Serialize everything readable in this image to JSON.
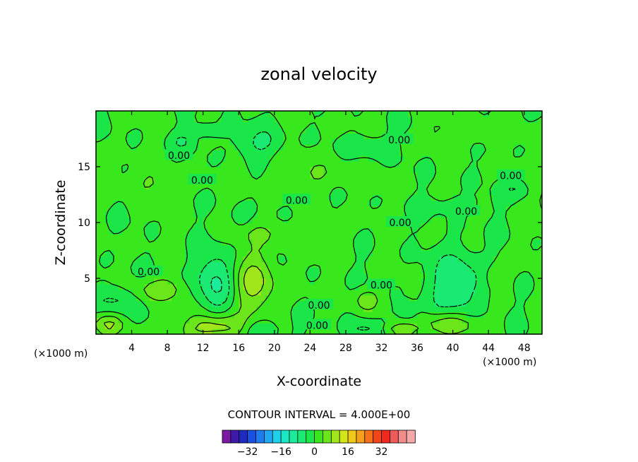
{
  "chart_data": {
    "type": "heatmap",
    "plot_style": "filled contour",
    "title": "zonal velocity",
    "xlabel": "X-coordinate",
    "ylabel": "Z-coordinate",
    "x_unit": "(×1000 m)",
    "xlim": [
      0,
      50
    ],
    "ylim": [
      0,
      20
    ],
    "x_ticks": [
      4,
      8,
      12,
      16,
      20,
      24,
      28,
      32,
      36,
      40,
      44,
      48
    ],
    "y_ticks": [
      5,
      10,
      15
    ],
    "contour_interval_label": "CONTOUR INTERVAL = 4.000E+00",
    "contour_interval": 4.0,
    "contour_labels": [
      {
        "text": "0.00",
        "x": 9.3,
        "y": 16.0
      },
      {
        "text": "0.00",
        "x": 11.9,
        "y": 13.8
      },
      {
        "text": "0.00",
        "x": 22.5,
        "y": 12.0
      },
      {
        "text": "0.00",
        "x": 34.1,
        "y": 10.0
      },
      {
        "text": "0.00",
        "x": 41.5,
        "y": 11.0
      },
      {
        "text": "0.00",
        "x": 46.5,
        "y": 14.2
      },
      {
        "text": "0.00",
        "x": 34.0,
        "y": 17.4
      },
      {
        "text": "0.00",
        "x": 5.9,
        "y": 5.6
      },
      {
        "text": "0.00",
        "x": 32.0,
        "y": 4.4
      },
      {
        "text": "0.00",
        "x": 25.0,
        "y": 2.6
      },
      {
        "text": "0.00",
        "x": 24.8,
        "y": 0.8
      }
    ],
    "field_features": [
      {
        "kind": "negative",
        "x": 13.4,
        "y": 4.8,
        "rx": 2.2,
        "ry": 2.6,
        "peak": -9
      },
      {
        "kind": "negative",
        "x": 40.5,
        "y": 4.6,
        "rx": 2.8,
        "ry": 2.8,
        "peak": -9
      },
      {
        "kind": "negative",
        "x": 2.0,
        "y": 3.1,
        "rx": 2.2,
        "ry": 1.4,
        "peak": -6
      },
      {
        "kind": "negative",
        "x": 18.5,
        "y": 0.4,
        "rx": 2.0,
        "ry": 0.9,
        "peak": -6
      },
      {
        "kind": "negative",
        "x": 30.0,
        "y": 0.5,
        "rx": 1.8,
        "ry": 0.8,
        "peak": -5
      },
      {
        "kind": "negative",
        "x": 35.0,
        "y": 2.0,
        "rx": 1.2,
        "ry": 0.9,
        "peak": -5
      },
      {
        "kind": "positive",
        "x": 17.7,
        "y": 4.6,
        "rx": 2.3,
        "ry": 2.5,
        "peak": 9
      },
      {
        "kind": "positive",
        "x": 13.3,
        "y": 0.6,
        "rx": 3.2,
        "ry": 1.1,
        "peak": 11
      },
      {
        "kind": "positive",
        "x": 6.9,
        "y": 4.0,
        "rx": 2.9,
        "ry": 1.0,
        "peak": 6
      },
      {
        "kind": "positive",
        "x": 1.5,
        "y": 0.9,
        "rx": 1.8,
        "ry": 0.9,
        "peak": 7
      },
      {
        "kind": "positive",
        "x": 30.3,
        "y": 3.1,
        "rx": 1.5,
        "ry": 1.0,
        "peak": 6
      },
      {
        "kind": "positive",
        "x": 34.0,
        "y": 0.4,
        "rx": 1.8,
        "ry": 0.6,
        "peak": 6
      },
      {
        "kind": "positive",
        "x": 39.8,
        "y": 0.9,
        "rx": 3.0,
        "ry": 0.9,
        "peak": 8
      },
      {
        "kind": "positive",
        "x": 44.8,
        "y": 5.2,
        "rx": 1.3,
        "ry": 1.0,
        "peak": 5
      },
      {
        "kind": "negative",
        "x": 18.3,
        "y": 17.2,
        "rx": 2.8,
        "ry": 1.3,
        "peak": -5
      },
      {
        "kind": "negative",
        "x": 9.7,
        "y": 17.3,
        "rx": 1.4,
        "ry": 0.8,
        "peak": -4
      },
      {
        "kind": "negative",
        "x": 12.3,
        "y": 18.3,
        "rx": 1.6,
        "ry": 0.7,
        "peak": -4
      },
      {
        "kind": "negative",
        "x": 30.7,
        "y": 16.8,
        "rx": 2.2,
        "ry": 1.2,
        "peak": -4
      },
      {
        "kind": "negative",
        "x": 16.2,
        "y": 10.5,
        "rx": 1.0,
        "ry": 0.9,
        "peak": -4
      },
      {
        "kind": "negative",
        "x": 47.0,
        "y": 13.0,
        "rx": 1.6,
        "ry": 0.9,
        "peak": -4
      },
      {
        "kind": "negative",
        "x": 40.0,
        "y": 11.6,
        "rx": 3.5,
        "ry": 0.8,
        "peak": -3
      },
      {
        "kind": "positive",
        "x": 25.0,
        "y": 14.3,
        "rx": 6.0,
        "ry": 1.4,
        "peak": 3
      },
      {
        "kind": "positive",
        "x": 20.0,
        "y": 9.0,
        "rx": 6.0,
        "ry": 1.2,
        "peak": 3
      },
      {
        "kind": "positive",
        "x": 43.0,
        "y": 18.0,
        "rx": 3.0,
        "ry": 1.0,
        "peak": 3
      },
      {
        "kind": "positive",
        "x": 6.0,
        "y": 13.5,
        "rx": 5.0,
        "ry": 1.2,
        "peak": 3
      }
    ],
    "colorbar": {
      "colors": [
        "#7a1aa3",
        "#3f1aa8",
        "#1f2bc0",
        "#1a50e0",
        "#1d7cf0",
        "#1fa8f3",
        "#1fd0ea",
        "#1ae8c4",
        "#1aec9c",
        "#1ae974",
        "#1ae64a",
        "#39e81c",
        "#6be61a",
        "#a0e61a",
        "#d2e61a",
        "#f0c81a",
        "#f5a01a",
        "#f5721a",
        "#f2461a",
        "#f0281e",
        "#f05a5a",
        "#f08c8c",
        "#f5a8a8"
      ],
      "min": -44,
      "step": 4,
      "tick_labels": [
        "-32",
        "-16",
        "0",
        "16",
        "32"
      ],
      "tick_values": [
        -32,
        -16,
        0,
        16,
        32
      ]
    }
  }
}
